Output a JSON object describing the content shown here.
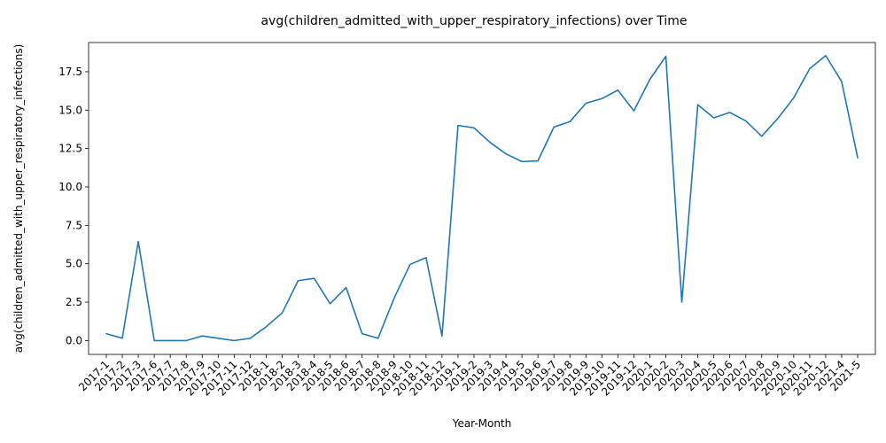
{
  "chart_data": {
    "type": "line",
    "title": "avg(children_admitted_with_upper_respiratory_infections) over Time",
    "xlabel": "Year-Month",
    "ylabel": "avg(children_admitted_with_upper_respiratory_infections)",
    "ylim": [
      -0.9,
      19.4
    ],
    "yticks": [
      0.0,
      2.5,
      5.0,
      7.5,
      10.0,
      12.5,
      15.0,
      17.5
    ],
    "ytick_labels": [
      "0.0",
      "2.5",
      "5.0",
      "7.5",
      "10.0",
      "12.5",
      "15.0",
      "17.5"
    ],
    "grid": false,
    "line_color": "#1f77b4",
    "categories": [
      "2017-1",
      "2017-2",
      "2017-3",
      "2017-6",
      "2017-7",
      "2017-8",
      "2017-9",
      "2017-10",
      "2017-11",
      "2017-12",
      "2018-1",
      "2018-2",
      "2018-3",
      "2018-4",
      "2018-5",
      "2018-6",
      "2018-7",
      "2018-8",
      "2018-9",
      "2018-10",
      "2018-11",
      "2018-12",
      "2019-1",
      "2019-2",
      "2019-3",
      "2019-4",
      "2019-5",
      "2019-6",
      "2019-7",
      "2019-8",
      "2019-9",
      "2019-10",
      "2019-11",
      "2019-12",
      "2020-1",
      "2020-2",
      "2020-3",
      "2020-4",
      "2020-5",
      "2020-6",
      "2020-7",
      "2020-8",
      "2020-9",
      "2020-10",
      "2020-11",
      "2020-12",
      "2021-4",
      "2021-5"
    ],
    "series": [
      {
        "values": [
          0.45,
          0.15,
          6.45,
          0.0,
          0.0,
          0.0,
          0.3,
          0.15,
          0.0,
          0.15,
          0.9,
          1.8,
          3.9,
          4.05,
          2.4,
          3.45,
          0.45,
          0.15,
          2.75,
          4.95,
          5.4,
          0.3,
          14.0,
          13.85,
          12.9,
          12.15,
          11.65,
          11.7,
          13.9,
          14.25,
          15.45,
          15.75,
          16.3,
          14.95,
          17.0,
          18.5,
          2.5,
          15.35,
          14.5,
          14.85,
          14.3,
          13.3,
          14.45,
          15.8,
          17.7,
          18.55,
          16.85,
          11.9
        ]
      }
    ]
  }
}
